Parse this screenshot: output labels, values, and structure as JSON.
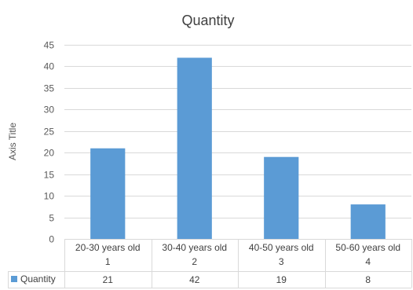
{
  "chart_data": {
    "type": "bar",
    "title": "Quantity",
    "ylabel": "Axis Title",
    "xlabel": "",
    "categories": [
      [
        "20-30 years old",
        "1"
      ],
      [
        "30-40 years old",
        "2"
      ],
      [
        "40-50 years old",
        "3"
      ],
      [
        "50-60 years old",
        "4"
      ]
    ],
    "series": [
      {
        "name": "Quantity",
        "values": [
          21,
          42,
          19,
          8
        ],
        "color": "#5b9bd5"
      }
    ],
    "ylim": [
      0,
      45
    ],
    "yticks": [
      0,
      5,
      10,
      15,
      20,
      25,
      30,
      35,
      40,
      45
    ],
    "grid": true,
    "legend": "data-table"
  }
}
